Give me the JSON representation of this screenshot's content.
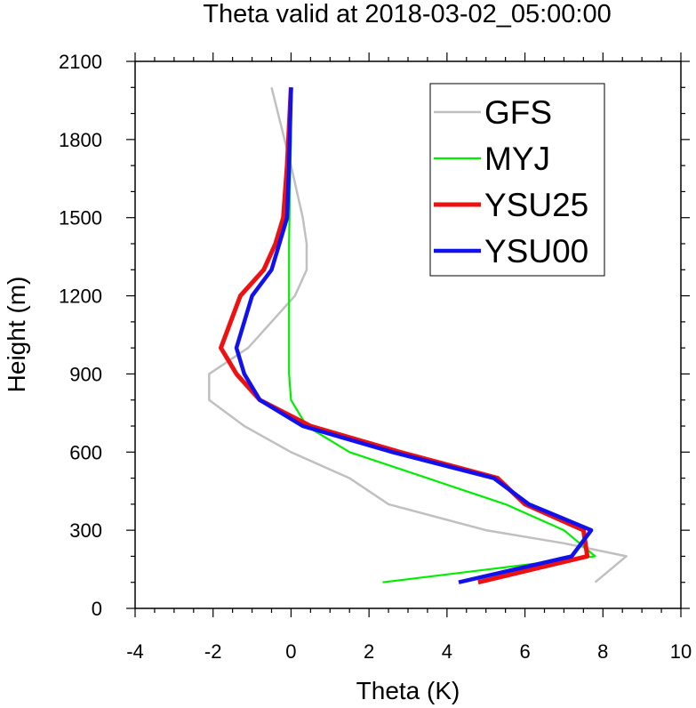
{
  "chart_data": {
    "type": "line",
    "title": "Theta valid at 2018-03-02_05:00:00",
    "xlabel": "Theta (K)",
    "ylabel": "Height (m)",
    "xlim": [
      -4,
      10
    ],
    "ylim": [
      0,
      2100
    ],
    "x_ticks": [
      -4,
      -2,
      0,
      2,
      4,
      6,
      8,
      10
    ],
    "y_ticks": [
      0,
      300,
      600,
      900,
      1200,
      1500,
      1800,
      2100
    ],
    "x_tick_labels": [
      "-4",
      "-2",
      "0",
      "2",
      "4",
      "6",
      "8",
      "10"
    ],
    "y_tick_labels": [
      "0",
      "300",
      "600",
      "900",
      "1200",
      "1500",
      "1800",
      "2100"
    ],
    "legend_position": "top-right",
    "grid": false,
    "series": [
      {
        "name": "GFS",
        "color": "#c0c0c0",
        "points": [
          [
            7.8,
            100
          ],
          [
            8.6,
            200
          ],
          [
            7.0,
            250
          ],
          [
            5.0,
            300
          ],
          [
            2.5,
            400
          ],
          [
            1.5,
            500
          ],
          [
            0.0,
            600
          ],
          [
            -1.2,
            700
          ],
          [
            -2.1,
            800
          ],
          [
            -2.1,
            900
          ],
          [
            -1.1,
            1000
          ],
          [
            0.1,
            1200
          ],
          [
            0.4,
            1300
          ],
          [
            0.4,
            1400
          ],
          [
            0.3,
            1500
          ],
          [
            0.0,
            1700
          ],
          [
            -0.5,
            2000
          ]
        ]
      },
      {
        "name": "MYJ",
        "color": "#00ee00",
        "points": [
          [
            2.35,
            100
          ],
          [
            7.8,
            200
          ],
          [
            7.0,
            300
          ],
          [
            5.5,
            400
          ],
          [
            3.5,
            500
          ],
          [
            1.5,
            600
          ],
          [
            0.4,
            700
          ],
          [
            0.0,
            800
          ],
          [
            -0.05,
            900
          ],
          [
            -0.05,
            1000
          ],
          [
            -0.05,
            1200
          ],
          [
            -0.05,
            1400
          ],
          [
            -0.03,
            1600
          ],
          [
            0.0,
            1800
          ],
          [
            0.0,
            2000
          ]
        ]
      },
      {
        "name": "YSU25",
        "color": "#ee1111",
        "points": [
          [
            4.8,
            100
          ],
          [
            7.6,
            200
          ],
          [
            7.5,
            300
          ],
          [
            6.0,
            400
          ],
          [
            5.3,
            500
          ],
          [
            2.8,
            600
          ],
          [
            0.5,
            700
          ],
          [
            -0.8,
            800
          ],
          [
            -1.4,
            900
          ],
          [
            -1.8,
            1000
          ],
          [
            -1.3,
            1200
          ],
          [
            -0.7,
            1300
          ],
          [
            -0.4,
            1400
          ],
          [
            -0.2,
            1500
          ],
          [
            -0.1,
            1700
          ],
          [
            0.0,
            2000
          ]
        ]
      },
      {
        "name": "YSU00",
        "color": "#1111ee",
        "points": [
          [
            4.3,
            100
          ],
          [
            7.2,
            200
          ],
          [
            7.7,
            300
          ],
          [
            6.1,
            400
          ],
          [
            5.2,
            500
          ],
          [
            2.6,
            600
          ],
          [
            0.3,
            700
          ],
          [
            -0.8,
            800
          ],
          [
            -1.2,
            900
          ],
          [
            -1.4,
            1000
          ],
          [
            -1.0,
            1200
          ],
          [
            -0.5,
            1300
          ],
          [
            -0.3,
            1400
          ],
          [
            -0.1,
            1500
          ],
          [
            -0.05,
            1700
          ],
          [
            0.0,
            2000
          ]
        ]
      }
    ]
  }
}
